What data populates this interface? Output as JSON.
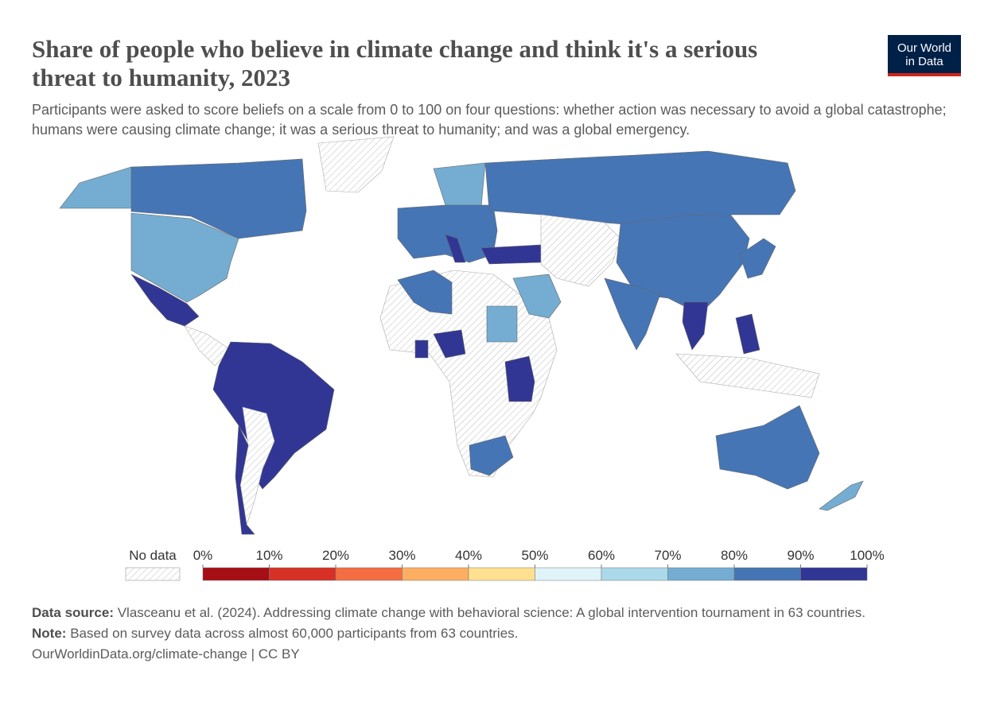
{
  "logo": {
    "line1": "Our World",
    "line2": "in Data"
  },
  "chart_data": {
    "type": "choropleth",
    "title": "Share of people who believe in climate change and think it's a serious threat to humanity, 2023",
    "subtitle": "Participants were asked to score beliefs on a scale from 0 to 100 on four questions: whether action was necessary to avoid a global catastrophe; humans were causing climate change; it was a serious threat to humanity; and was a global emergency.",
    "legend": {
      "no_data": "No data",
      "ticks": [
        {
          "value": 0,
          "label": "0%"
        },
        {
          "value": 10,
          "label": "10%"
        },
        {
          "value": 20,
          "label": "20%"
        },
        {
          "value": 30,
          "label": "30%"
        },
        {
          "value": 40,
          "label": "40%"
        },
        {
          "value": 50,
          "label": "50%"
        },
        {
          "value": 60,
          "label": "60%"
        },
        {
          "value": 70,
          "label": "70%"
        },
        {
          "value": 80,
          "label": "80%"
        },
        {
          "value": 90,
          "label": "90%"
        },
        {
          "value": 100,
          "label": "100%"
        }
      ],
      "colors": [
        "#a50f15",
        "#d73027",
        "#f46d43",
        "#fdae61",
        "#fee090",
        "#e0f3f8",
        "#abd9e9",
        "#74add1",
        "#4575b4",
        "#313695"
      ]
    },
    "footer": {
      "source_label": "Data source:",
      "source": "Vlasceanu et al. (2024). Addressing climate change with behavioral science: A global intervention tournament in 63 countries.",
      "note_label": "Note:",
      "note": "Based on survey data across almost 60,000 participants from 63 countries.",
      "url": "OurWorldinData.org/climate-change | CC BY"
    }
  }
}
